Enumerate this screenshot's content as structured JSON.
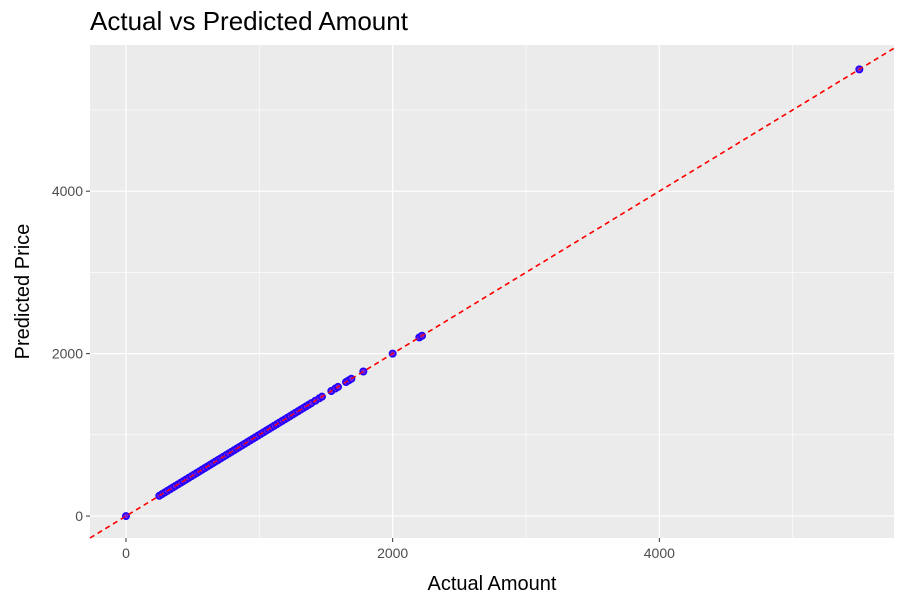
{
  "chart_data": {
    "type": "scatter",
    "title": "Actual vs Predicted Amount",
    "xlabel": "Actual Amount",
    "ylabel": "Predicted Price",
    "xlim": [
      -270,
      5760
    ],
    "ylim": [
      -270,
      5800
    ],
    "x_ticks": [
      0,
      2000,
      4000
    ],
    "y_ticks": [
      0,
      2000,
      4000
    ],
    "x_minor": [
      1000,
      3000,
      5000
    ],
    "y_minor": [
      1000,
      3000,
      5000
    ],
    "grid": true,
    "reference_line": {
      "slope": 1,
      "intercept": 0,
      "style": "dashed",
      "color": "#ff0000"
    },
    "colors": {
      "panel": "#ebebeb",
      "grid": "#ffffff",
      "point_outline": "#1f00ff",
      "point_fill": "#7a1fd6",
      "reference": "#ff0000"
    },
    "x": [
      0,
      250,
      270,
      290,
      310,
      330,
      350,
      370,
      390,
      410,
      430,
      450,
      470,
      490,
      510,
      530,
      550,
      570,
      590,
      610,
      630,
      650,
      670,
      690,
      710,
      730,
      750,
      770,
      790,
      810,
      830,
      850,
      870,
      890,
      910,
      930,
      950,
      970,
      990,
      1010,
      1030,
      1050,
      1070,
      1090,
      1110,
      1130,
      1150,
      1170,
      1190,
      1210,
      1230,
      1250,
      1270,
      1290,
      1310,
      1330,
      1350,
      1370,
      1390,
      1420,
      1450,
      1470,
      1540,
      1570,
      1590,
      1650,
      1670,
      1690,
      1780,
      2000,
      2200,
      2220,
      5500
    ],
    "y": [
      0,
      250,
      270,
      290,
      310,
      330,
      350,
      370,
      390,
      410,
      430,
      450,
      470,
      490,
      510,
      530,
      550,
      570,
      590,
      610,
      630,
      650,
      670,
      690,
      710,
      730,
      750,
      770,
      790,
      810,
      830,
      850,
      870,
      890,
      910,
      930,
      950,
      970,
      990,
      1010,
      1030,
      1050,
      1070,
      1090,
      1110,
      1130,
      1150,
      1170,
      1190,
      1210,
      1230,
      1250,
      1270,
      1290,
      1310,
      1330,
      1350,
      1370,
      1390,
      1420,
      1450,
      1470,
      1540,
      1570,
      1590,
      1650,
      1670,
      1690,
      1780,
      2000,
      2200,
      2220,
      5500
    ]
  }
}
